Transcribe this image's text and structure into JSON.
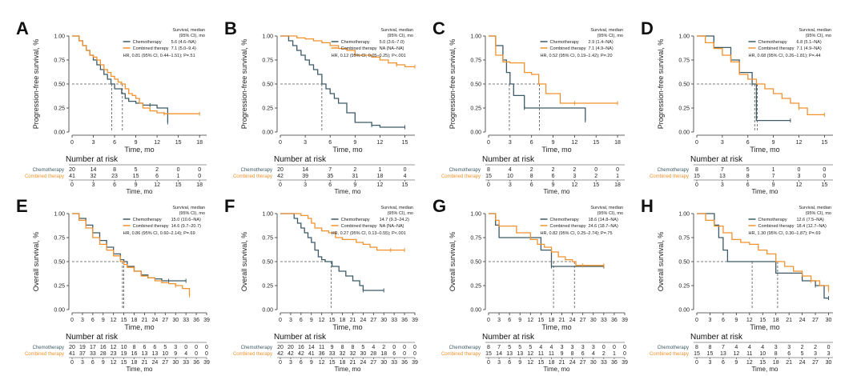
{
  "colors": {
    "chemo": "#3d5a66",
    "combined": "#f0922e",
    "axis": "#333333",
    "text": "#222222"
  },
  "common": {
    "legend_header_1": "Survival, median",
    "legend_header_2": "(95% CI), mo",
    "series_chemo": "Chemotherapy",
    "series_combined": "Combined therapy",
    "xlabel": "Time, mo",
    "risk_title": "Number at risk",
    "risk_chemo_label": "Chemotherapy",
    "risk_combined_label": "Combined therapy"
  },
  "chart_data": [
    {
      "type": "line",
      "panel": "A",
      "ylabel": "Progression-free survival, %",
      "xlim": [
        0,
        19
      ],
      "xticks": [
        0,
        3,
        6,
        9,
        12,
        15,
        18
      ],
      "ylim": [
        0,
        1
      ],
      "yticks": [
        "0.00",
        "0.25",
        "0.50",
        "0.75",
        "1.00"
      ],
      "legend_chemo": "5.6 (4.6–NA)",
      "legend_combined": "7.1 (5.0–9.4)",
      "hr": "HR, 0.81 (95% CI, 0.44–1.51); P=.51",
      "medians": [
        5.6,
        7.1
      ],
      "series": [
        {
          "name": "Chemotherapy",
          "x": [
            0,
            0.5,
            1,
            1.5,
            2,
            2.5,
            3,
            3.5,
            4,
            4.5,
            5,
            5.5,
            6,
            6.5,
            7,
            7.5,
            8,
            9,
            10,
            11,
            12,
            13.5
          ],
          "y": [
            1,
            1,
            0.95,
            0.9,
            0.85,
            0.8,
            0.75,
            0.7,
            0.65,
            0.6,
            0.55,
            0.5,
            0.45,
            0.45,
            0.4,
            0.35,
            0.32,
            0.3,
            0.28,
            0.28,
            0.25,
            0.1
          ]
        },
        {
          "name": "Combined therapy",
          "x": [
            0,
            0.5,
            1,
            1.5,
            2,
            2.5,
            3,
            3.5,
            4,
            4.5,
            5,
            5.5,
            6,
            6.5,
            7,
            7.5,
            8,
            8.5,
            9,
            9.5,
            10,
            11,
            12,
            13,
            15,
            18
          ],
          "y": [
            1,
            1,
            0.95,
            0.9,
            0.85,
            0.8,
            0.78,
            0.75,
            0.7,
            0.65,
            0.62,
            0.58,
            0.55,
            0.52,
            0.5,
            0.45,
            0.4,
            0.38,
            0.35,
            0.3,
            0.25,
            0.22,
            0.2,
            0.19,
            0.19,
            0.19
          ]
        }
      ],
      "risk_chemo": [
        "20",
        "14",
        "8",
        "5",
        "2",
        "0",
        "0"
      ],
      "risk_combined": [
        "41",
        "32",
        "23",
        "15",
        "6",
        "1",
        "0"
      ]
    },
    {
      "type": "line",
      "panel": "B",
      "ylabel": "Progression-free survival, %",
      "xlim": [
        0,
        16.2
      ],
      "xticks": [
        0,
        3,
        6,
        9,
        12,
        15
      ],
      "ylim": [
        0,
        1
      ],
      "yticks": [
        "0.00",
        "0.25",
        "0.50",
        "0.75",
        "1.00"
      ],
      "legend_chemo": "5.0 (3.6–7.0)",
      "legend_combined": "NA (NA–NA)",
      "hr": "HR, 0.12 (95% CI, 0.05–0.25); P<.001",
      "medians": [
        5.0
      ],
      "series": [
        {
          "name": "Chemotherapy",
          "x": [
            0,
            1,
            1.5,
            2,
            2.5,
            3,
            3.5,
            4,
            4.5,
            5,
            5.5,
            6,
            6.5,
            7,
            8,
            9,
            10,
            11,
            12,
            15
          ],
          "y": [
            1,
            0.95,
            0.9,
            0.85,
            0.8,
            0.75,
            0.7,
            0.65,
            0.6,
            0.5,
            0.45,
            0.4,
            0.35,
            0.3,
            0.2,
            0.1,
            0.1,
            0.07,
            0.05,
            0.05
          ]
        },
        {
          "name": "Combined therapy",
          "x": [
            0,
            1,
            2,
            3,
            4,
            5,
            6,
            7,
            8,
            9,
            10,
            11,
            12,
            13,
            14,
            15,
            16.2
          ],
          "y": [
            1,
            1,
            0.98,
            0.97,
            0.95,
            0.93,
            0.9,
            0.87,
            0.85,
            0.8,
            0.8,
            0.78,
            0.75,
            0.72,
            0.7,
            0.68,
            0.68
          ]
        }
      ],
      "risk_chemo": [
        "20",
        "14",
        "7",
        "2",
        "1",
        "0"
      ],
      "risk_combined": [
        "42",
        "39",
        "35",
        "31",
        "18",
        "4"
      ]
    },
    {
      "type": "line",
      "panel": "C",
      "ylabel": "Progression-free survival, %",
      "xlim": [
        0,
        19
      ],
      "xticks": [
        0,
        3,
        6,
        9,
        12,
        15,
        18
      ],
      "ylim": [
        0,
        1
      ],
      "yticks": [
        "0.00",
        "0.25",
        "0.50",
        "0.75",
        "1.00"
      ],
      "legend_chemo": "2.9 (1.4–NA)",
      "legend_combined": "7.1 (4.9–NA)",
      "hr": "HR, 0.52 (95% CI, 0.19–1.42); P=.20",
      "medians": [
        2.9,
        7.1
      ],
      "series": [
        {
          "name": "Chemotherapy",
          "x": [
            0,
            1,
            2,
            2.5,
            3,
            3.5,
            5,
            9,
            13.5
          ],
          "y": [
            1,
            0.9,
            0.75,
            0.62,
            0.5,
            0.38,
            0.25,
            0.25,
            0.12
          ]
        },
        {
          "name": "Combined therapy",
          "x": [
            0,
            1,
            2,
            3,
            4,
            5,
            6,
            7,
            8,
            9,
            10,
            11,
            12,
            15,
            18
          ],
          "y": [
            1,
            0.8,
            0.73,
            0.72,
            0.72,
            0.62,
            0.6,
            0.5,
            0.4,
            0.4,
            0.3,
            0.3,
            0.3,
            0.3,
            0.3
          ]
        }
      ],
      "risk_chemo": [
        "8",
        "4",
        "2",
        "2",
        "2",
        "0",
        "0"
      ],
      "risk_combined": [
        "15",
        "10",
        "8",
        "6",
        "3",
        "2",
        "1"
      ]
    },
    {
      "type": "line",
      "panel": "D",
      "ylabel": "Progression-free survival, %",
      "xlim": [
        0,
        16
      ],
      "xticks": [
        0,
        3,
        6,
        9,
        12,
        15
      ],
      "ylim": [
        0,
        1
      ],
      "yticks": [
        "0.00",
        "0.25",
        "0.50",
        "0.75",
        "1.00"
      ],
      "legend_chemo": "6.8 (5.1–NA)",
      "legend_combined": "7.1 (4.9–NA)",
      "hr": "HR, 0.68 (95% CI, 0.26–1.81); P=.44",
      "medians": [
        6.8,
        7.1
      ],
      "series": [
        {
          "name": "Chemotherapy",
          "x": [
            0,
            1,
            2,
            3,
            4,
            5,
            6,
            6.5,
            7,
            11
          ],
          "y": [
            1,
            1,
            0.88,
            0.88,
            0.75,
            0.62,
            0.62,
            0.5,
            0.12,
            0.12
          ]
        },
        {
          "name": "Combined therapy",
          "x": [
            0,
            1,
            2,
            3,
            4,
            5,
            6,
            7,
            8,
            9,
            10,
            11,
            12,
            13,
            15
          ],
          "y": [
            1,
            0.93,
            0.87,
            0.8,
            0.73,
            0.6,
            0.55,
            0.5,
            0.45,
            0.4,
            0.35,
            0.3,
            0.25,
            0.18,
            0.18
          ]
        }
      ],
      "risk_chemo": [
        "8",
        "7",
        "5",
        "1",
        "0",
        "0"
      ],
      "risk_combined": [
        "15",
        "13",
        "8",
        "7",
        "3",
        "0"
      ]
    },
    {
      "type": "line",
      "panel": "E",
      "ylabel": "Overall survival, %",
      "xlim": [
        0,
        39
      ],
      "xticks": [
        0,
        3,
        6,
        9,
        12,
        15,
        18,
        21,
        24,
        27,
        30,
        33,
        36,
        39
      ],
      "ylim": [
        0,
        1
      ],
      "yticks": [
        "0.00",
        "0.25",
        "0.50",
        "0.75",
        "1.00"
      ],
      "legend_chemo": "15.0 (10.6–NA)",
      "legend_combined": "14.6 (9.7–20.7)",
      "hr": "HR, 0.86 (95% CI, 0.60–2.14); P=.69",
      "medians": [
        15.0,
        14.6
      ],
      "series": [
        {
          "name": "Chemotherapy",
          "x": [
            0,
            2,
            4,
            6,
            8,
            10,
            12,
            14,
            15,
            16,
            18,
            20,
            22,
            24,
            26,
            28,
            30,
            33
          ],
          "y": [
            1,
            0.95,
            0.88,
            0.8,
            0.72,
            0.65,
            0.58,
            0.52,
            0.5,
            0.45,
            0.4,
            0.36,
            0.33,
            0.32,
            0.3,
            0.3,
            0.3,
            0.3
          ]
        },
        {
          "name": "Combined therapy",
          "x": [
            0,
            2,
            4,
            6,
            8,
            10,
            12,
            14,
            15,
            16,
            18,
            20,
            22,
            24,
            26,
            28,
            30,
            32,
            34
          ],
          "y": [
            1,
            0.93,
            0.85,
            0.75,
            0.68,
            0.62,
            0.56,
            0.5,
            0.47,
            0.44,
            0.4,
            0.35,
            0.33,
            0.3,
            0.28,
            0.27,
            0.25,
            0.22,
            0.15
          ]
        }
      ],
      "risk_chemo": [
        "20",
        "19",
        "17",
        "16",
        "12",
        "10",
        "8",
        "6",
        "6",
        "5",
        "3",
        "0",
        "0",
        "0"
      ],
      "risk_combined": [
        "41",
        "37",
        "33",
        "28",
        "23",
        "19",
        "16",
        "13",
        "13",
        "10",
        "9",
        "4",
        "0",
        "0"
      ]
    },
    {
      "type": "line",
      "panel": "F",
      "ylabel": "Overall survival, %",
      "xlim": [
        0,
        39
      ],
      "xticks": [
        0,
        3,
        6,
        9,
        12,
        15,
        18,
        21,
        24,
        27,
        30,
        33,
        36,
        39
      ],
      "ylim": [
        0,
        1
      ],
      "yticks": [
        "0.00",
        "0.25",
        "0.50",
        "0.75",
        "1.00"
      ],
      "legend_chemo": "14.7 (9.3–24.2)",
      "legend_combined": "NA (NA–NA)",
      "hr": "HR, 0.27 (95% CI, 0.13–0.55); P<.001",
      "medians": [
        14.7
      ],
      "series": [
        {
          "name": "Chemotherapy",
          "x": [
            0,
            3,
            4,
            5,
            6,
            7,
            8,
            9,
            10,
            11,
            12,
            13,
            14,
            15,
            17,
            19,
            21,
            23,
            24,
            27,
            30
          ],
          "y": [
            1,
            1,
            0.95,
            0.9,
            0.85,
            0.8,
            0.75,
            0.7,
            0.62,
            0.55,
            0.52,
            0.5,
            0.5,
            0.45,
            0.4,
            0.35,
            0.3,
            0.25,
            0.2,
            0.2,
            0.2
          ]
        },
        {
          "name": "Combined therapy",
          "x": [
            0,
            4,
            6,
            8,
            9,
            10,
            12,
            14,
            16,
            18,
            20,
            22,
            24,
            26,
            28,
            30,
            32,
            34,
            36
          ],
          "y": [
            1,
            1,
            0.98,
            0.95,
            0.9,
            0.85,
            0.82,
            0.8,
            0.75,
            0.73,
            0.73,
            0.7,
            0.68,
            0.65,
            0.62,
            0.62,
            0.62,
            0.62,
            0.62
          ]
        }
      ],
      "risk_chemo": [
        "20",
        "20",
        "16",
        "14",
        "11",
        "9",
        "8",
        "8",
        "5",
        "4",
        "2",
        "0",
        "0",
        "0"
      ],
      "risk_combined": [
        "42",
        "42",
        "42",
        "41",
        "36",
        "33",
        "32",
        "32",
        "30",
        "28",
        "18",
        "6",
        "0",
        "0"
      ]
    },
    {
      "type": "line",
      "panel": "G",
      "ylabel": "Overall survival, %",
      "xlim": [
        0,
        39
      ],
      "xticks": [
        0,
        3,
        6,
        9,
        12,
        15,
        18,
        21,
        24,
        27,
        30,
        33,
        36,
        39
      ],
      "ylim": [
        0,
        1
      ],
      "yticks": [
        "0.00",
        "0.25",
        "0.50",
        "0.75",
        "1.00"
      ],
      "legend_chemo": "18.6 (14.8–NA)",
      "legend_combined": "24.6 (18.7–NA)",
      "hr": "HR, 0.82 (95% CI, 0.25–2.74); P=.75",
      "medians": [
        18.6,
        24.6
      ],
      "series": [
        {
          "name": "Chemotherapy",
          "x": [
            0,
            2,
            3,
            12,
            15,
            18,
            19,
            33
          ],
          "y": [
            1,
            0.88,
            0.75,
            0.75,
            0.62,
            0.45,
            0.45,
            0.45
          ]
        },
        {
          "name": "Combined therapy",
          "x": [
            0,
            2,
            3,
            5,
            8,
            10,
            12,
            14,
            16,
            18,
            20,
            22,
            24,
            25,
            27,
            30,
            33
          ],
          "y": [
            1,
            0.93,
            0.87,
            0.87,
            0.8,
            0.8,
            0.73,
            0.68,
            0.65,
            0.6,
            0.55,
            0.52,
            0.5,
            0.46,
            0.46,
            0.46,
            0.46
          ]
        }
      ],
      "risk_chemo": [
        "8",
        "7",
        "5",
        "5",
        "5",
        "4",
        "4",
        "3",
        "3",
        "3",
        "3",
        "0",
        "0",
        "0"
      ],
      "risk_combined": [
        "15",
        "14",
        "13",
        "13",
        "12",
        "11",
        "11",
        "9",
        "8",
        "6",
        "4",
        "2",
        "1",
        "0"
      ]
    },
    {
      "type": "line",
      "panel": "H",
      "ylabel": "Overall survival, %",
      "xlim": [
        0,
        31
      ],
      "xticks": [
        0,
        3,
        6,
        9,
        12,
        15,
        18,
        21,
        24,
        27,
        30
      ],
      "ylim": [
        0,
        1
      ],
      "yticks": [
        "0.00",
        "0.25",
        "0.50",
        "0.75",
        "1.00"
      ],
      "legend_chemo": "12.6 (7.5–NA)",
      "legend_combined": "18.4 (12.7–NA)",
      "hr": "HR, 1.30 (95% CI, 0.30–1.87); P=.69",
      "medians": [
        12.6,
        18.4
      ],
      "series": [
        {
          "name": "Chemotherapy",
          "x": [
            0,
            2,
            4,
            5,
            6,
            7,
            8,
            12,
            14,
            18,
            19,
            21,
            24,
            27,
            29,
            30
          ],
          "y": [
            1,
            1,
            0.88,
            0.75,
            0.62,
            0.5,
            0.5,
            0.5,
            0.5,
            0.38,
            0.38,
            0.38,
            0.3,
            0.25,
            0.12,
            0.12
          ]
        },
        {
          "name": "Combined therapy",
          "x": [
            0,
            2,
            4,
            6,
            8,
            10,
            12,
            14,
            16,
            18,
            20,
            22,
            24,
            26,
            28,
            30
          ],
          "y": [
            1,
            0.93,
            0.87,
            0.8,
            0.73,
            0.7,
            0.68,
            0.62,
            0.58,
            0.5,
            0.45,
            0.4,
            0.35,
            0.3,
            0.25,
            0.2
          ]
        }
      ],
      "risk_chemo": [
        "8",
        "8",
        "7",
        "4",
        "4",
        "4",
        "3",
        "3",
        "2",
        "2",
        "0"
      ],
      "risk_combined": [
        "15",
        "15",
        "13",
        "12",
        "11",
        "10",
        "8",
        "6",
        "5",
        "3",
        "3"
      ]
    }
  ]
}
